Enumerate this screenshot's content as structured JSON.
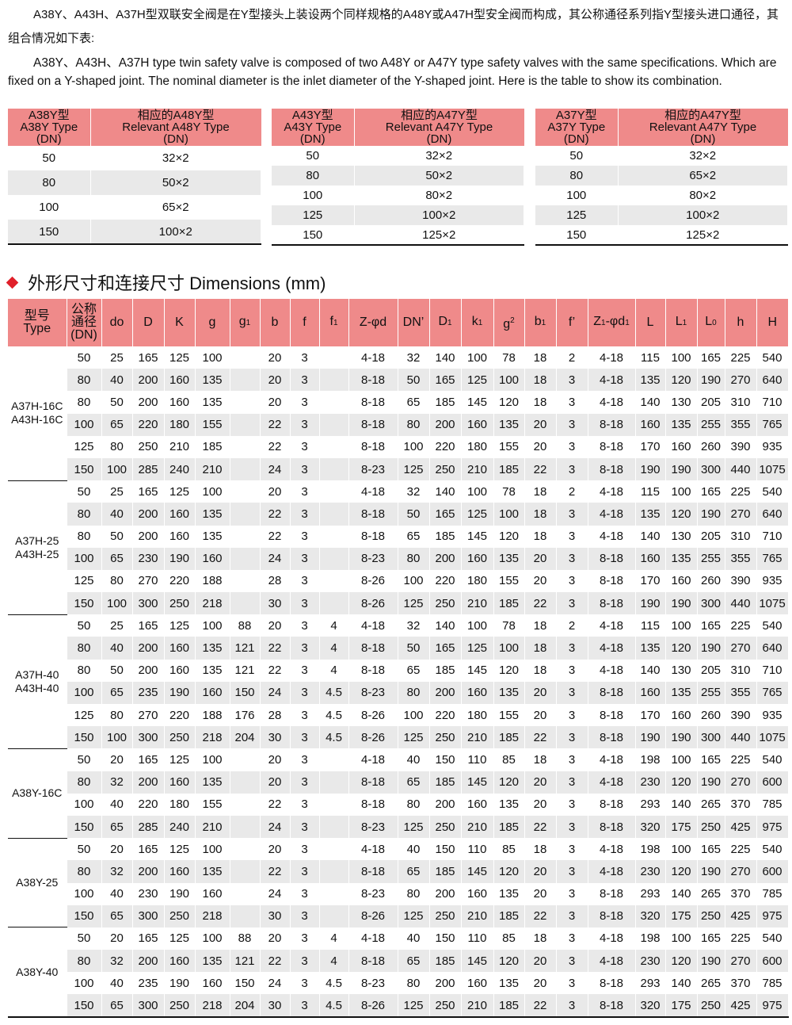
{
  "intro": {
    "zh": "A38Y、A43H、A37H型双联安全阀是在Y型接头上装设两个同样规格的A48Y或A47H型安全阀而构成，其公称通径系列指Y型接头进口通径，其组合情况如下表:",
    "en": "A38Y、A43H、A37H type twin safety valve is composed of two A48Y or A47Y type safety valves with the same specifications. Which are fixed on a Y-shaped joint. The nominal diameter is the inlet diameter of the Y-shaped joint. Here is the table to show its combination."
  },
  "combo_tables": [
    {
      "h1": [
        "A38Y型",
        "A38Y  Type",
        "(DN)"
      ],
      "h2": [
        "相应的A48Y型",
        "Relevant  A48Y  Type",
        "(DN)"
      ],
      "rows": [
        [
          "50",
          "32×2"
        ],
        [
          "80",
          "50×2"
        ],
        [
          "100",
          "65×2"
        ],
        [
          "150",
          "100×2"
        ]
      ]
    },
    {
      "h1": [
        "A43Y型",
        "A43Y  Type",
        "(DN)"
      ],
      "h2": [
        "相应的A47Y型",
        "Relevant  A47Y  Type",
        "(DN)"
      ],
      "rows": [
        [
          "50",
          "32×2"
        ],
        [
          "80",
          "50×2"
        ],
        [
          "100",
          "80×2"
        ],
        [
          "125",
          "100×2"
        ],
        [
          "150",
          "125×2"
        ]
      ]
    },
    {
      "h1": [
        "A37Y型",
        "A37Y  Type",
        "(DN)"
      ],
      "h2": [
        "相应的A47Y型",
        "Relevant  A47Y  Type",
        "(DN)"
      ],
      "rows": [
        [
          "50",
          "32×2"
        ],
        [
          "80",
          "65×2"
        ],
        [
          "100",
          "80×2"
        ],
        [
          "125",
          "100×2"
        ],
        [
          "150",
          "125×2"
        ]
      ]
    }
  ],
  "section": {
    "title": "外形尺寸和连接尺寸  Dimensions (mm)",
    "bullet_color": "#e0202a"
  },
  "colors": {
    "header": "#ef8a8a",
    "stripe": "#e9e9e9"
  },
  "dims": {
    "headers": [
      "型号<br>Type",
      "公称<br>通径<br>(DN)",
      "do",
      "D",
      "K",
      "g",
      "g<sub>1</sub>",
      "b",
      "f",
      "f<sub>1</sub>",
      "Z-φd",
      "DN’",
      "D<sub>1</sub>",
      "k<sub>1</sub>",
      "g<sup style='font-size:10px'>2</sup>",
      "b<sub>1</sub>",
      "f’",
      "Z<sub>1</sub>-φd<sub>1</sub>",
      "L",
      "L<sub>1</sub>",
      "L<sub>0</sub>",
      "h",
      "H"
    ],
    "groups": [
      {
        "type": [
          "A37H-16C",
          "A43H-16C"
        ],
        "rows": [
          [
            "50",
            "25",
            "165",
            "125",
            "100",
            "",
            "20",
            "3",
            "",
            "4-18",
            "32",
            "140",
            "100",
            "78",
            "18",
            "2",
            "4-18",
            "115",
            "100",
            "165",
            "225",
            "540"
          ],
          [
            "80",
            "40",
            "200",
            "160",
            "135",
            "",
            "20",
            "3",
            "",
            "8-18",
            "50",
            "165",
            "125",
            "100",
            "18",
            "3",
            "4-18",
            "135",
            "120",
            "190",
            "270",
            "640"
          ],
          [
            "80",
            "50",
            "200",
            "160",
            "135",
            "",
            "20",
            "3",
            "",
            "8-18",
            "65",
            "185",
            "145",
            "120",
            "18",
            "3",
            "4-18",
            "140",
            "130",
            "205",
            "310",
            "710"
          ],
          [
            "100",
            "65",
            "220",
            "180",
            "155",
            "",
            "22",
            "3",
            "",
            "8-18",
            "80",
            "200",
            "160",
            "135",
            "20",
            "3",
            "8-18",
            "160",
            "135",
            "255",
            "355",
            "765"
          ],
          [
            "125",
            "80",
            "250",
            "210",
            "185",
            "",
            "22",
            "3",
            "",
            "8-18",
            "100",
            "220",
            "180",
            "155",
            "20",
            "3",
            "8-18",
            "170",
            "160",
            "260",
            "390",
            "935"
          ],
          [
            "150",
            "100",
            "285",
            "240",
            "210",
            "",
            "24",
            "3",
            "",
            "8-23",
            "125",
            "250",
            "210",
            "185",
            "22",
            "3",
            "8-18",
            "190",
            "190",
            "300",
            "440",
            "1075"
          ]
        ]
      },
      {
        "type": [
          "A37H-25",
          "A43H-25"
        ],
        "rows": [
          [
            "50",
            "25",
            "165",
            "125",
            "100",
            "",
            "20",
            "3",
            "",
            "4-18",
            "32",
            "140",
            "100",
            "78",
            "18",
            "2",
            "4-18",
            "115",
            "100",
            "165",
            "225",
            "540"
          ],
          [
            "80",
            "40",
            "200",
            "160",
            "135",
            "",
            "22",
            "3",
            "",
            "8-18",
            "50",
            "165",
            "125",
            "100",
            "18",
            "3",
            "4-18",
            "135",
            "120",
            "190",
            "270",
            "640"
          ],
          [
            "80",
            "50",
            "200",
            "160",
            "135",
            "",
            "22",
            "3",
            "",
            "8-18",
            "65",
            "185",
            "145",
            "120",
            "18",
            "3",
            "4-18",
            "140",
            "130",
            "205",
            "310",
            "710"
          ],
          [
            "100",
            "65",
            "230",
            "190",
            "160",
            "",
            "24",
            "3",
            "",
            "8-23",
            "80",
            "200",
            "160",
            "135",
            "20",
            "3",
            "8-18",
            "160",
            "135",
            "255",
            "355",
            "765"
          ],
          [
            "125",
            "80",
            "270",
            "220",
            "188",
            "",
            "28",
            "3",
            "",
            "8-26",
            "100",
            "220",
            "180",
            "155",
            "20",
            "3",
            "8-18",
            "170",
            "160",
            "260",
            "390",
            "935"
          ],
          [
            "150",
            "100",
            "300",
            "250",
            "218",
            "",
            "30",
            "3",
            "",
            "8-26",
            "125",
            "250",
            "210",
            "185",
            "22",
            "3",
            "8-18",
            "190",
            "190",
            "300",
            "440",
            "1075"
          ]
        ]
      },
      {
        "type": [
          "A37H-40",
          "A43H-40"
        ],
        "rows": [
          [
            "50",
            "25",
            "165",
            "125",
            "100",
            "88",
            "20",
            "3",
            "4",
            "4-18",
            "32",
            "140",
            "100",
            "78",
            "18",
            "2",
            "4-18",
            "115",
            "100",
            "165",
            "225",
            "540"
          ],
          [
            "80",
            "40",
            "200",
            "160",
            "135",
            "121",
            "22",
            "3",
            "4",
            "8-18",
            "50",
            "165",
            "125",
            "100",
            "18",
            "3",
            "4-18",
            "135",
            "120",
            "190",
            "270",
            "640"
          ],
          [
            "80",
            "50",
            "200",
            "160",
            "135",
            "121",
            "22",
            "3",
            "4",
            "8-18",
            "65",
            "185",
            "145",
            "120",
            "18",
            "3",
            "4-18",
            "140",
            "130",
            "205",
            "310",
            "710"
          ],
          [
            "100",
            "65",
            "235",
            "190",
            "160",
            "150",
            "24",
            "3",
            "4.5",
            "8-23",
            "80",
            "200",
            "160",
            "135",
            "20",
            "3",
            "8-18",
            "160",
            "135",
            "255",
            "355",
            "765"
          ],
          [
            "125",
            "80",
            "270",
            "220",
            "188",
            "176",
            "28",
            "3",
            "4.5",
            "8-26",
            "100",
            "220",
            "180",
            "155",
            "20",
            "3",
            "8-18",
            "170",
            "160",
            "260",
            "390",
            "935"
          ],
          [
            "150",
            "100",
            "300",
            "250",
            "218",
            "204",
            "30",
            "3",
            "4.5",
            "8-26",
            "125",
            "250",
            "210",
            "185",
            "22",
            "3",
            "8-18",
            "190",
            "190",
            "300",
            "440",
            "1075"
          ]
        ]
      },
      {
        "type": [
          "A38Y-16C"
        ],
        "rows": [
          [
            "50",
            "20",
            "165",
            "125",
            "100",
            "",
            "20",
            "3",
            "",
            "4-18",
            "40",
            "150",
            "110",
            "85",
            "18",
            "3",
            "4-18",
            "198",
            "100",
            "165",
            "225",
            "540"
          ],
          [
            "80",
            "32",
            "200",
            "160",
            "135",
            "",
            "20",
            "3",
            "",
            "8-18",
            "65",
            "185",
            "145",
            "120",
            "20",
            "3",
            "4-18",
            "230",
            "120",
            "190",
            "270",
            "600"
          ],
          [
            "100",
            "40",
            "220",
            "180",
            "155",
            "",
            "22",
            "3",
            "",
            "8-18",
            "80",
            "200",
            "160",
            "135",
            "20",
            "3",
            "8-18",
            "293",
            "140",
            "265",
            "370",
            "785"
          ],
          [
            "150",
            "65",
            "285",
            "240",
            "210",
            "",
            "24",
            "3",
            "",
            "8-23",
            "125",
            "250",
            "210",
            "185",
            "22",
            "3",
            "8-18",
            "320",
            "175",
            "250",
            "425",
            "975"
          ]
        ]
      },
      {
        "type": [
          "A38Y-25"
        ],
        "rows": [
          [
            "50",
            "20",
            "165",
            "125",
            "100",
            "",
            "20",
            "3",
            "",
            "4-18",
            "40",
            "150",
            "110",
            "85",
            "18",
            "3",
            "4-18",
            "198",
            "100",
            "165",
            "225",
            "540"
          ],
          [
            "80",
            "32",
            "200",
            "160",
            "135",
            "",
            "22",
            "3",
            "",
            "8-18",
            "65",
            "185",
            "145",
            "120",
            "20",
            "3",
            "4-18",
            "230",
            "120",
            "190",
            "270",
            "600"
          ],
          [
            "100",
            "40",
            "230",
            "190",
            "160",
            "",
            "24",
            "3",
            "",
            "8-23",
            "80",
            "200",
            "160",
            "135",
            "20",
            "3",
            "8-18",
            "293",
            "140",
            "265",
            "370",
            "785"
          ],
          [
            "150",
            "65",
            "300",
            "250",
            "218",
            "",
            "30",
            "3",
            "",
            "8-26",
            "125",
            "250",
            "210",
            "185",
            "22",
            "3",
            "8-18",
            "320",
            "175",
            "250",
            "425",
            "975"
          ]
        ]
      },
      {
        "type": [
          "A38Y-40"
        ],
        "rows": [
          [
            "50",
            "20",
            "165",
            "125",
            "100",
            "88",
            "20",
            "3",
            "4",
            "4-18",
            "40",
            "150",
            "110",
            "85",
            "18",
            "3",
            "4-18",
            "198",
            "100",
            "165",
            "225",
            "540"
          ],
          [
            "80",
            "32",
            "200",
            "160",
            "135",
            "121",
            "22",
            "3",
            "4",
            "8-18",
            "65",
            "185",
            "145",
            "120",
            "20",
            "3",
            "4-18",
            "230",
            "120",
            "190",
            "270",
            "600"
          ],
          [
            "100",
            "40",
            "235",
            "190",
            "160",
            "150",
            "24",
            "3",
            "4.5",
            "8-23",
            "80",
            "200",
            "160",
            "135",
            "20",
            "3",
            "8-18",
            "293",
            "140",
            "265",
            "370",
            "785"
          ],
          [
            "150",
            "65",
            "300",
            "250",
            "218",
            "204",
            "30",
            "3",
            "4.5",
            "8-26",
            "125",
            "250",
            "210",
            "185",
            "22",
            "3",
            "8-18",
            "320",
            "175",
            "250",
            "425",
            "975"
          ]
        ]
      }
    ]
  }
}
